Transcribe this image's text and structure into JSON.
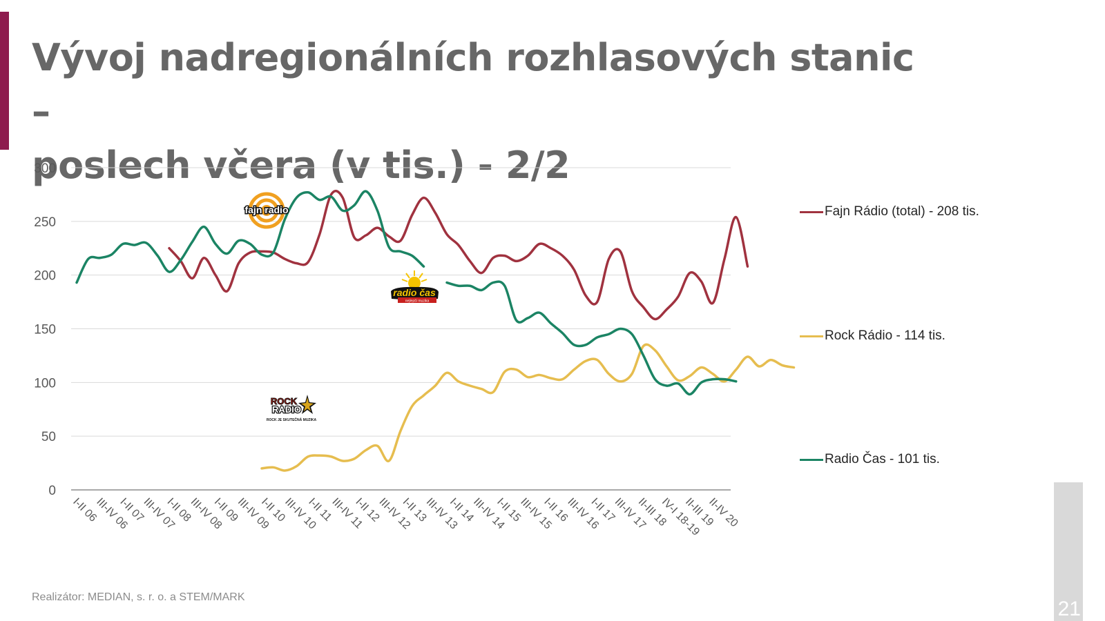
{
  "slide": {
    "title_line1": "Vývoj nadregionálních rozhlasových stanic –",
    "title_line2": "poslech včera (v tis.) - 2/2",
    "footer": "Realizátor: MEDIAN, s. r. o. a STEM/MARK",
    "page_number": "21",
    "accent_color": "#8e1b4e"
  },
  "logos": {
    "fajn": "fajn radio",
    "cas_main": "radio čas",
    "cas_sub": "nejlepší muzika",
    "rock_line1": "ROCK",
    "rock_line2": "RADIO",
    "rock_sub": "ROCK JE SKUTEČNÁ MUZIKA"
  },
  "chart_data": {
    "type": "line",
    "title": "Vývoj nadregionálních rozhlasových stanic – poslech včera (v tis.) - 2/2",
    "xlabel": "",
    "ylabel": "poslech včera (v tis.)",
    "ylim": [
      0,
      300
    ],
    "yticks": [
      0,
      50,
      100,
      150,
      200,
      250,
      300
    ],
    "grid": true,
    "legend_position": "right",
    "categories": [
      "I-II 06",
      "III-IV 06",
      "I-II 07",
      "III-IV 07",
      "I-II 08",
      "III-IV 08",
      "I-II 09",
      "III-IV 09",
      "I-II 10",
      "III-IV 10",
      "I-II 11",
      "III-IV 11",
      "I-II 12",
      "III-IV 12",
      "I-II 13",
      "III-IV 13",
      "I-II 14",
      "III-IV 14",
      "I-II 15",
      "III-IV 15",
      "I-II 16",
      "III-IV 16",
      "I-II 17",
      "III-IV 17",
      "II-III 18",
      "IV-I 18-19",
      "II-III 19",
      "II-IV 20"
    ],
    "sample_step_note": "values sampled at half-category intervals along x; null = no data",
    "series": [
      {
        "name": "Fajn Rádio (total) - 208 tis.",
        "color": "#a0323f",
        "start_index": 4,
        "values": [
          225,
          213,
          197,
          216,
          200,
          185,
          211,
          221,
          222,
          221,
          215,
          211,
          212,
          238,
          275,
          272,
          235,
          237,
          244,
          236,
          232,
          256,
          272,
          258,
          238,
          228,
          213,
          202,
          216,
          218,
          213,
          218,
          229,
          225,
          218,
          205,
          181,
          175,
          215,
          222,
          185,
          170,
          159,
          168,
          180,
          202,
          194,
          174,
          215,
          254,
          208
        ]
      },
      {
        "name": "Rock Rádio - 114 tis.",
        "color": "#e6bd4f",
        "start_index": 8,
        "values": [
          20,
          21,
          18,
          22,
          31,
          32,
          31,
          27,
          29,
          37,
          41,
          27,
          55,
          78,
          88,
          97,
          109,
          101,
          97,
          94,
          91,
          110,
          112,
          105,
          107,
          104,
          103,
          112,
          120,
          121,
          108,
          101,
          108,
          134,
          130,
          115,
          102,
          106,
          114,
          108,
          101,
          112,
          124,
          115,
          121,
          116,
          114
        ]
      },
      {
        "name": "Radio Čas - 101 tis.",
        "color": "#1b8464",
        "start_index": 0,
        "values": [
          193,
          215,
          216,
          219,
          229,
          228,
          230,
          218,
          203,
          214,
          231,
          245,
          229,
          220,
          232,
          229,
          219,
          221,
          252,
          272,
          277,
          270,
          273,
          260,
          265,
          278,
          260,
          226,
          222,
          218,
          208,
          null,
          193,
          190,
          190,
          186,
          193,
          190,
          158,
          160,
          165,
          155,
          146,
          135,
          135,
          142,
          145,
          150,
          145,
          125,
          103,
          97,
          99,
          89,
          100,
          103,
          103,
          101
        ]
      }
    ]
  }
}
